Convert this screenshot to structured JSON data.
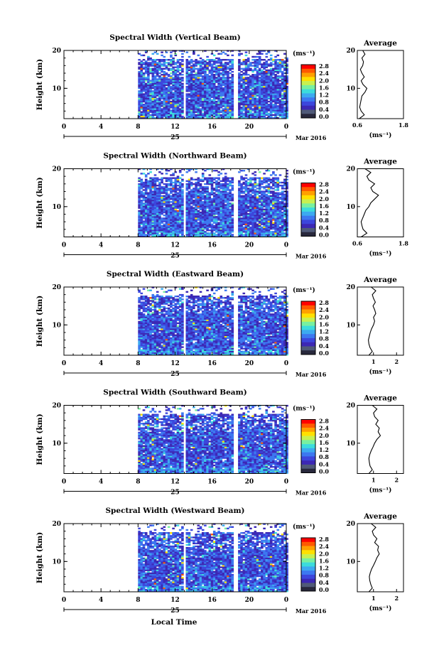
{
  "figure": {
    "xlabel": "Local Time",
    "date_label": "Mar 2016"
  },
  "colorbar": {
    "unit": "(ms⁻¹)",
    "ticks": [
      "2.8",
      "2.4",
      "2.0",
      "1.6",
      "1.2",
      "0.8",
      "0.4",
      "0.0"
    ],
    "colors": [
      "#ff0000",
      "#ff5a00",
      "#ffa000",
      "#ffe000",
      "#c8f050",
      "#78f0a0",
      "#3cdcdc",
      "#3caaf0",
      "#3c78f0",
      "#3c46dc",
      "#3c28b4",
      "#505a78",
      "#28283c"
    ]
  },
  "chart_data": [
    {
      "type": "heatmap",
      "title": "Spectral Width (Vertical Beam)",
      "ylabel": "Height (km)",
      "xlim": [
        0,
        24
      ],
      "ylim": [
        2,
        20
      ],
      "xticks": [
        "0",
        "4",
        "8",
        "12",
        "16",
        "20",
        "0"
      ],
      "yticks": [
        "20",
        "10"
      ],
      "date_ticks": [
        "25"
      ],
      "data_gaps_hours": [
        [
          0,
          8
        ],
        [
          12.7,
          13.1
        ],
        [
          18.3,
          18.7
        ]
      ],
      "profile": {
        "title": "Average",
        "xlabel": "(ms⁻¹)",
        "xlim": [
          0.6,
          1.8
        ],
        "xticks": [
          "0.6",
          "1.8"
        ],
        "yticks": [
          "20",
          "10"
        ],
        "heights": [
          2,
          3,
          4,
          5,
          6,
          7,
          8,
          9,
          10,
          11,
          12,
          13,
          14,
          15,
          16,
          17,
          18,
          19,
          20
        ],
        "values": [
          0.65,
          0.78,
          0.7,
          0.66,
          0.68,
          0.7,
          0.72,
          0.8,
          0.85,
          0.75,
          0.7,
          0.78,
          0.72,
          0.68,
          0.74,
          0.76,
          0.72,
          0.8,
          0.74
        ]
      }
    },
    {
      "type": "heatmap",
      "title": "Spectral Width (Northward Beam)",
      "ylabel": "Height (km)",
      "xlim": [
        0,
        24
      ],
      "ylim": [
        2,
        20
      ],
      "xticks": [
        "0",
        "4",
        "8",
        "12",
        "16",
        "20",
        "0"
      ],
      "yticks": [
        "20",
        "10"
      ],
      "date_ticks": [
        "25"
      ],
      "data_gaps_hours": [
        [
          0,
          8
        ],
        [
          12.7,
          13.1
        ],
        [
          18.3,
          18.7
        ]
      ],
      "profile": {
        "title": "Average",
        "xlabel": "(ms⁻¹)",
        "xlim": [
          0.6,
          1.8
        ],
        "xticks": [
          "0.6",
          "1.8"
        ],
        "yticks": [
          "20",
          "10"
        ],
        "heights": [
          2,
          3,
          4,
          5,
          6,
          7,
          8,
          9,
          10,
          11,
          12,
          13,
          14,
          15,
          16,
          17,
          18,
          19,
          20
        ],
        "values": [
          0.7,
          0.85,
          0.75,
          0.72,
          0.7,
          0.74,
          0.78,
          0.82,
          0.9,
          0.95,
          1.05,
          1.15,
          1.0,
          0.95,
          1.05,
          0.9,
          0.85,
          0.95,
          0.8
        ]
      }
    },
    {
      "type": "heatmap",
      "title": "Spectral Width (Eastward Beam)",
      "ylabel": "Height (km)",
      "xlim": [
        0,
        24
      ],
      "ylim": [
        2,
        20
      ],
      "xticks": [
        "0",
        "4",
        "8",
        "12",
        "16",
        "20",
        "0"
      ],
      "yticks": [
        "20",
        "10"
      ],
      "date_ticks": [
        "25"
      ],
      "data_gaps_hours": [
        [
          0,
          8
        ],
        [
          12.7,
          13.1
        ],
        [
          18.3,
          18.7
        ]
      ],
      "profile": {
        "title": "Average",
        "xlabel": "(ms⁻¹)",
        "xlim": [
          0.3,
          2.3
        ],
        "xticks": [
          "1",
          "2"
        ],
        "yticks": [
          "20",
          "10"
        ],
        "heights": [
          2,
          3,
          4,
          5,
          6,
          7,
          8,
          9,
          10,
          11,
          12,
          13,
          14,
          15,
          16,
          17,
          18,
          19,
          20
        ],
        "values": [
          0.8,
          0.95,
          0.85,
          0.8,
          0.78,
          0.82,
          0.86,
          0.92,
          1.0,
          1.05,
          1.0,
          1.1,
          1.05,
          0.98,
          1.08,
          1.0,
          0.95,
          1.1,
          0.9
        ]
      }
    },
    {
      "type": "heatmap",
      "title": "Spectral Width (Southward Beam)",
      "ylabel": "Height (km)",
      "xlim": [
        0,
        24
      ],
      "ylim": [
        2,
        20
      ],
      "xticks": [
        "0",
        "4",
        "8",
        "12",
        "16",
        "20",
        "0"
      ],
      "yticks": [
        "20",
        "10"
      ],
      "date_ticks": [
        "25"
      ],
      "data_gaps_hours": [
        [
          0,
          8
        ],
        [
          12.7,
          13.1
        ],
        [
          18.3,
          18.7
        ]
      ],
      "profile": {
        "title": "Average",
        "xlabel": "(ms⁻¹)",
        "xlim": [
          0.3,
          2.3
        ],
        "xticks": [
          "1",
          "2"
        ],
        "yticks": [
          "20",
          "10"
        ],
        "heights": [
          2,
          3,
          4,
          5,
          6,
          7,
          8,
          9,
          10,
          11,
          12,
          13,
          14,
          15,
          16,
          17,
          18,
          19,
          20
        ],
        "values": [
          0.8,
          0.95,
          0.85,
          0.82,
          0.8,
          0.84,
          0.9,
          0.98,
          1.05,
          1.15,
          1.3,
          1.2,
          1.25,
          1.1,
          1.2,
          1.05,
          1.0,
          1.15,
          0.95
        ]
      }
    },
    {
      "type": "heatmap",
      "title": "Spectral Width (Westward Beam)",
      "ylabel": "Height (km)",
      "xlim": [
        0,
        24
      ],
      "ylim": [
        2,
        20
      ],
      "xticks": [
        "0",
        "4",
        "8",
        "12",
        "16",
        "20",
        "0"
      ],
      "yticks": [
        "20",
        "10"
      ],
      "date_ticks": [
        "25"
      ],
      "data_gaps_hours": [
        [
          0,
          8
        ],
        [
          12.7,
          13.1
        ],
        [
          18.3,
          18.7
        ]
      ],
      "profile": {
        "title": "Average",
        "xlabel": "(ms⁻¹)",
        "xlim": [
          0.3,
          2.3
        ],
        "xticks": [
          "1",
          "2"
        ],
        "yticks": [
          "20",
          "10"
        ],
        "heights": [
          2,
          3,
          4,
          5,
          6,
          7,
          8,
          9,
          10,
          11,
          12,
          13,
          14,
          15,
          16,
          17,
          18,
          19,
          20
        ],
        "values": [
          0.8,
          0.95,
          0.88,
          0.84,
          0.82,
          0.86,
          0.92,
          1.0,
          1.08,
          1.15,
          1.25,
          1.18,
          1.22,
          1.05,
          1.15,
          1.0,
          0.95,
          1.1,
          0.9
        ]
      }
    }
  ]
}
